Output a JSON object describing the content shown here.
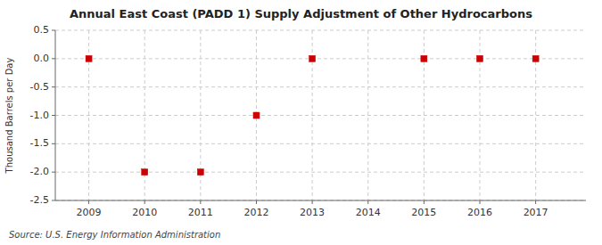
{
  "chart_data": {
    "type": "scatter",
    "title": "Annual East Coast (PADD 1) Supply Adjustment of Other Hydrocarbons",
    "ylabel": "Thousand Barrels per Day",
    "annotation": "Source: U.S. Energy Information Administration",
    "x": [
      2009,
      2010,
      2011,
      2012,
      2013,
      2015,
      2016,
      2017
    ],
    "values": [
      0.0,
      -2.0,
      -2.0,
      -1.0,
      0.0,
      0.0,
      0.0,
      0.0
    ],
    "color": "#cc0000",
    "marker": "square",
    "xlim": [
      2008.4,
      2017.9
    ],
    "ylim": [
      -2.5,
      0.5
    ],
    "xticks": [
      2009,
      2010,
      2011,
      2012,
      2013,
      2014,
      2015,
      2016,
      2017
    ],
    "yticks": [
      0.5,
      {
        "value": 0.0,
        "label": "0.0"
      },
      -0.5,
      {
        "value": -1.0,
        "label": "-1.0"
      },
      -1.5,
      {
        "value": -2.0,
        "label": "-2.0"
      },
      -2.5
    ],
    "grid": true
  }
}
